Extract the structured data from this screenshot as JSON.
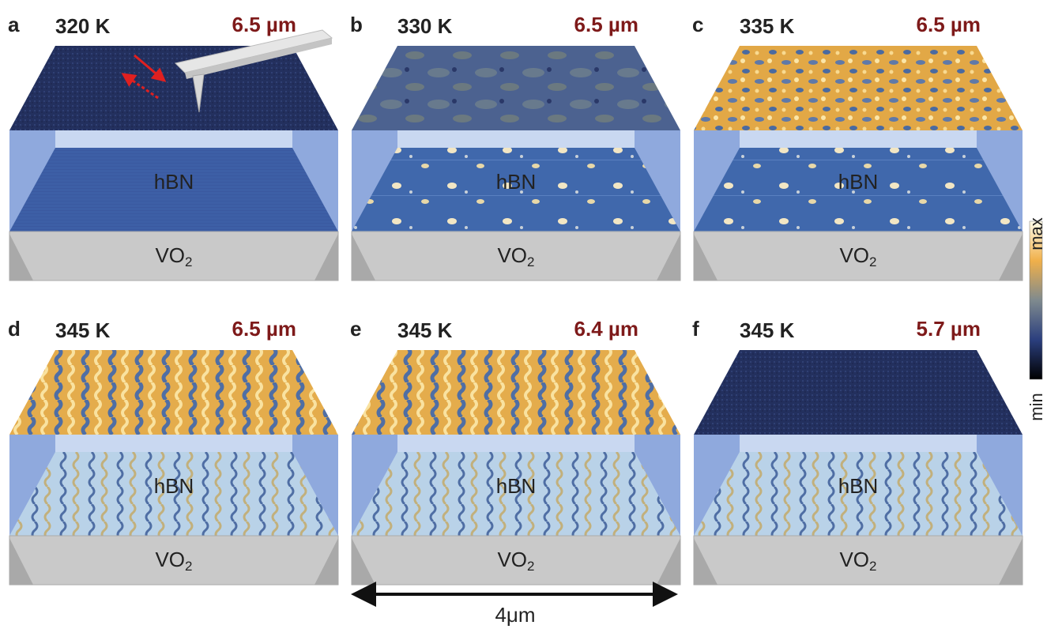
{
  "panels": [
    {
      "letter": "a",
      "temperature": "320 K",
      "wavelength": "6.5 µm",
      "upper_layer": "hBN",
      "lower_layer": "VO",
      "lower_layer_subscript": "2"
    },
    {
      "letter": "b",
      "temperature": "330 K",
      "wavelength": "6.5 µm",
      "upper_layer": "hBN",
      "lower_layer": "VO",
      "lower_layer_subscript": "2"
    },
    {
      "letter": "c",
      "temperature": "335 K",
      "wavelength": "6.5 µm",
      "upper_layer": "hBN",
      "lower_layer": "VO",
      "lower_layer_subscript": "2"
    },
    {
      "letter": "d",
      "temperature": "345 K",
      "wavelength": "6.5 µm",
      "upper_layer": "hBN",
      "lower_layer": "VO",
      "lower_layer_subscript": "2"
    },
    {
      "letter": "e",
      "temperature": "345 K",
      "wavelength": "6.4 µm",
      "upper_layer": "hBN",
      "lower_layer": "VO",
      "lower_layer_subscript": "2"
    },
    {
      "letter": "f",
      "temperature": "345 K",
      "wavelength": "5.7 µm",
      "upper_layer": "hBN",
      "lower_layer": "VO",
      "lower_layer_subscript": "2"
    }
  ],
  "colorbar": {
    "max_label": "max",
    "min_label": "min"
  },
  "scale_bar": "4μm"
}
